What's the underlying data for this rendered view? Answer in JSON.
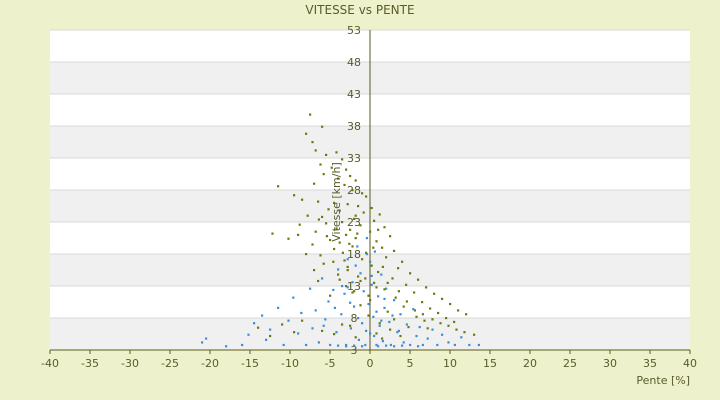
{
  "chart_data": {
    "type": "scatter",
    "title": "VITESSE vs PENTE",
    "xlabel": "Pente [%]",
    "ylabel": "Vitesse [km/h]",
    "xlim": [
      -40,
      40
    ],
    "ylim": [
      3,
      53
    ],
    "x_ticks": [
      "-40",
      "-35",
      "-30",
      "-25",
      "-20",
      "-15",
      "-10",
      "-5",
      "0",
      "5",
      "10",
      "15",
      "20",
      "25",
      "30",
      "35",
      "40"
    ],
    "y_ticks": [
      "3",
      "8",
      "13",
      "18",
      "23",
      "28",
      "33",
      "38",
      "43",
      "48",
      "53"
    ],
    "grid": true,
    "legend": "none",
    "colors": {
      "series_a": "#6b7a0a",
      "series_b": "#3a8fd8",
      "axis": "#5a5a1a",
      "band": "#f0f0f0"
    },
    "series": [
      {
        "points": [
          [
            -7.5,
            39.8
          ],
          [
            -6.0,
            37.9
          ],
          [
            -8.0,
            36.8
          ],
          [
            -7.2,
            35.5
          ],
          [
            -6.8,
            34.2
          ],
          [
            -4.2,
            33.9
          ],
          [
            -5.5,
            33.5
          ],
          [
            -3.5,
            32.8
          ],
          [
            -6.2,
            32.0
          ],
          [
            -4.8,
            31.5
          ],
          [
            -3.0,
            31.2
          ],
          [
            -5.8,
            30.5
          ],
          [
            -2.5,
            30.2
          ],
          [
            -4.0,
            29.8
          ],
          [
            -1.8,
            29.5
          ],
          [
            -7.0,
            29.0
          ],
          [
            -3.2,
            28.8
          ],
          [
            -11.5,
            28.6
          ],
          [
            -9.5,
            27.2
          ],
          [
            -2.2,
            28.0
          ],
          [
            -1.0,
            27.5
          ],
          [
            -0.5,
            27.0
          ],
          [
            -8.5,
            26.5
          ],
          [
            -6.5,
            26.2
          ],
          [
            -4.5,
            26.0
          ],
          [
            -2.8,
            25.8
          ],
          [
            -1.5,
            25.5
          ],
          [
            0.2,
            25.2
          ],
          [
            -5.2,
            25.0
          ],
          [
            -3.8,
            24.8
          ],
          [
            -0.8,
            24.5
          ],
          [
            1.2,
            24.2
          ],
          [
            -7.8,
            24.0
          ],
          [
            -6.0,
            23.8
          ],
          [
            -2.0,
            23.5
          ],
          [
            0.5,
            23.2
          ],
          [
            -3.5,
            23.0
          ],
          [
            -5.5,
            22.8
          ],
          [
            -1.2,
            22.5
          ],
          [
            1.8,
            22.2
          ],
          [
            -4.2,
            22.0
          ],
          [
            -2.5,
            21.8
          ],
          [
            0.0,
            21.5
          ],
          [
            -12.2,
            21.2
          ],
          [
            -6.8,
            21.5
          ],
          [
            -9.0,
            21.0
          ],
          [
            -3.0,
            21.0
          ],
          [
            2.5,
            20.8
          ],
          [
            -1.8,
            20.5
          ],
          [
            -5.0,
            20.2
          ],
          [
            0.8,
            20.0
          ],
          [
            -3.8,
            19.8
          ],
          [
            -7.2,
            19.5
          ],
          [
            -2.2,
            19.2
          ],
          [
            1.5,
            19.0
          ],
          [
            -4.5,
            18.8
          ],
          [
            3.0,
            18.5
          ],
          [
            -0.5,
            18.2
          ],
          [
            -8.0,
            18.0
          ],
          [
            -6.2,
            17.8
          ],
          [
            2.0,
            17.5
          ],
          [
            -1.0,
            17.2
          ],
          [
            -3.2,
            17.0
          ],
          [
            4.0,
            16.8
          ],
          [
            -5.8,
            16.5
          ],
          [
            0.2,
            16.2
          ],
          [
            -2.8,
            16.0
          ],
          [
            3.5,
            15.8
          ],
          [
            -7.0,
            15.5
          ],
          [
            1.0,
            15.2
          ],
          [
            5.0,
            15.0
          ],
          [
            -4.0,
            14.8
          ],
          [
            -1.5,
            14.5
          ],
          [
            2.8,
            14.2
          ],
          [
            6.0,
            14.0
          ],
          [
            -6.5,
            13.8
          ],
          [
            0.5,
            13.5
          ],
          [
            4.5,
            13.2
          ],
          [
            -3.0,
            13.0
          ],
          [
            7.0,
            12.8
          ],
          [
            1.8,
            12.5
          ],
          [
            -2.0,
            12.2
          ],
          [
            5.5,
            12.0
          ],
          [
            8.0,
            11.8
          ],
          [
            -5.0,
            11.5
          ],
          [
            3.2,
            11.2
          ],
          [
            9.0,
            11.0
          ],
          [
            0.0,
            10.8
          ],
          [
            6.5,
            10.5
          ],
          [
            10.0,
            10.2
          ],
          [
            -1.2,
            10.0
          ],
          [
            4.2,
            9.8
          ],
          [
            7.5,
            9.5
          ],
          [
            11.0,
            9.2
          ],
          [
            2.2,
            9.0
          ],
          [
            8.5,
            8.8
          ],
          [
            12.0,
            8.6
          ],
          [
            -0.2,
            8.4
          ],
          [
            5.8,
            8.2
          ],
          [
            9.5,
            8.0
          ],
          [
            3.0,
            7.8
          ],
          [
            6.8,
            7.6
          ],
          [
            10.5,
            7.4
          ],
          [
            1.2,
            7.2
          ],
          [
            -3.5,
            7.0
          ],
          [
            -8.5,
            7.6
          ],
          [
            -11.0,
            7.0
          ],
          [
            -14.0,
            6.5
          ],
          [
            -2.5,
            6.8
          ],
          [
            4.8,
            6.6
          ],
          [
            7.2,
            6.4
          ],
          [
            2.5,
            6.2
          ],
          [
            -6.0,
            6.0
          ],
          [
            -9.5,
            5.8
          ],
          [
            0.8,
            5.6
          ],
          [
            -4.5,
            5.5
          ],
          [
            -12.5,
            5.2
          ],
          [
            3.8,
            5.2
          ],
          [
            -1.8,
            5.0
          ],
          [
            1.5,
            4.8
          ],
          [
            -2.8,
            15.5
          ],
          [
            -1.2,
            13.8
          ],
          [
            0.8,
            12.8
          ],
          [
            -0.6,
            14.2
          ],
          [
            -2.2,
            12.0
          ],
          [
            1.6,
            16.0
          ],
          [
            -3.4,
            18.2
          ],
          [
            -1.6,
            21.2
          ],
          [
            0.4,
            19.0
          ],
          [
            -4.6,
            16.8
          ],
          [
            2.2,
            13.5
          ],
          [
            -0.2,
            11.5
          ],
          [
            -2.6,
            19.6
          ],
          [
            -5.4,
            20.8
          ],
          [
            -3.8,
            14.0
          ],
          [
            1.0,
            21.8
          ],
          [
            -1.8,
            24.0
          ],
          [
            -6.4,
            23.4
          ],
          [
            -8.8,
            22.6
          ],
          [
            -10.2,
            20.4
          ],
          [
            3.6,
            12.2
          ],
          [
            4.6,
            10.6
          ],
          [
            5.6,
            9.2
          ],
          [
            6.6,
            8.6
          ],
          [
            7.8,
            7.8
          ],
          [
            8.8,
            7.2
          ],
          [
            9.8,
            6.8
          ],
          [
            10.8,
            6.2
          ],
          [
            11.8,
            5.8
          ],
          [
            13.0,
            5.4
          ]
        ]
      },
      {
        "points": [
          [
            -20.5,
            4.8
          ],
          [
            -21.0,
            4.2
          ],
          [
            -18.0,
            3.6
          ],
          [
            -16.0,
            3.8
          ],
          [
            -15.2,
            5.4
          ],
          [
            -14.5,
            7.2
          ],
          [
            -13.5,
            8.4
          ],
          [
            -13.0,
            4.6
          ],
          [
            -12.5,
            6.2
          ],
          [
            -11.5,
            9.6
          ],
          [
            -10.8,
            3.8
          ],
          [
            -10.2,
            7.6
          ],
          [
            -9.6,
            11.2
          ],
          [
            -9.0,
            5.6
          ],
          [
            -8.6,
            8.8
          ],
          [
            -8.0,
            3.8
          ],
          [
            -7.5,
            12.6
          ],
          [
            -7.2,
            6.4
          ],
          [
            -6.8,
            9.2
          ],
          [
            -6.4,
            4.2
          ],
          [
            -6.0,
            14.2
          ],
          [
            -5.6,
            7.8
          ],
          [
            -5.2,
            10.6
          ],
          [
            -5.0,
            3.8
          ],
          [
            -4.6,
            12.4
          ],
          [
            -4.2,
            5.8
          ],
          [
            -4.0,
            15.6
          ],
          [
            -3.6,
            8.6
          ],
          [
            -3.2,
            11.8
          ],
          [
            -3.0,
            3.8
          ],
          [
            -2.8,
            17.2
          ],
          [
            -2.4,
            6.4
          ],
          [
            -2.2,
            13.6
          ],
          [
            -2.0,
            9.8
          ],
          [
            -1.6,
            19.2
          ],
          [
            -1.4,
            4.6
          ],
          [
            -1.2,
            15.0
          ],
          [
            -1.0,
            7.2
          ],
          [
            -0.8,
            12.2
          ],
          [
            -0.6,
            3.8
          ],
          [
            -0.4,
            20.5
          ],
          [
            -0.2,
            10.2
          ],
          [
            0.0,
            16.8
          ],
          [
            0.0,
            5.6
          ],
          [
            0.2,
            13.2
          ],
          [
            0.4,
            8.2
          ],
          [
            0.6,
            18.4
          ],
          [
            0.8,
            3.8
          ],
          [
            1.0,
            11.4
          ],
          [
            1.2,
            6.8
          ],
          [
            1.4,
            14.8
          ],
          [
            1.6,
            4.4
          ],
          [
            1.8,
            9.6
          ],
          [
            2.0,
            12.6
          ],
          [
            2.4,
            7.4
          ],
          [
            2.6,
            3.8
          ],
          [
            3.0,
            10.8
          ],
          [
            3.4,
            5.8
          ],
          [
            3.8,
            8.6
          ],
          [
            4.2,
            4.2
          ],
          [
            4.6,
            7.0
          ],
          [
            5.0,
            3.8
          ],
          [
            5.4,
            9.4
          ],
          [
            5.8,
            5.2
          ],
          [
            6.2,
            6.6
          ],
          [
            6.6,
            3.8
          ],
          [
            7.2,
            4.8
          ],
          [
            7.8,
            6.2
          ],
          [
            8.4,
            3.8
          ],
          [
            9.0,
            5.4
          ],
          [
            9.8,
            4.2
          ],
          [
            10.6,
            3.8
          ],
          [
            11.4,
            5.0
          ],
          [
            12.4,
            3.8
          ],
          [
            13.6,
            3.8
          ],
          [
            -1.0,
            3.6
          ],
          [
            -2.0,
            3.7
          ],
          [
            -3.0,
            3.6
          ],
          [
            -4.0,
            3.7
          ],
          [
            1.0,
            3.6
          ],
          [
            2.0,
            3.7
          ],
          [
            3.0,
            3.6
          ],
          [
            4.0,
            3.7
          ],
          [
            6.0,
            3.6
          ],
          [
            0.5,
            5.2
          ],
          [
            -0.5,
            6.0
          ],
          [
            -1.5,
            8.0
          ],
          [
            0.8,
            9.0
          ],
          [
            -2.5,
            10.4
          ],
          [
            1.4,
            7.6
          ],
          [
            -3.5,
            13.0
          ],
          [
            0.2,
            14.6
          ],
          [
            -1.8,
            16.2
          ],
          [
            -0.4,
            18.0
          ],
          [
            -2.8,
            12.8
          ],
          [
            1.8,
            11.0
          ],
          [
            -4.4,
            9.6
          ],
          [
            2.8,
            8.4
          ],
          [
            -5.8,
            6.8
          ],
          [
            3.6,
            6.0
          ]
        ]
      }
    ]
  }
}
